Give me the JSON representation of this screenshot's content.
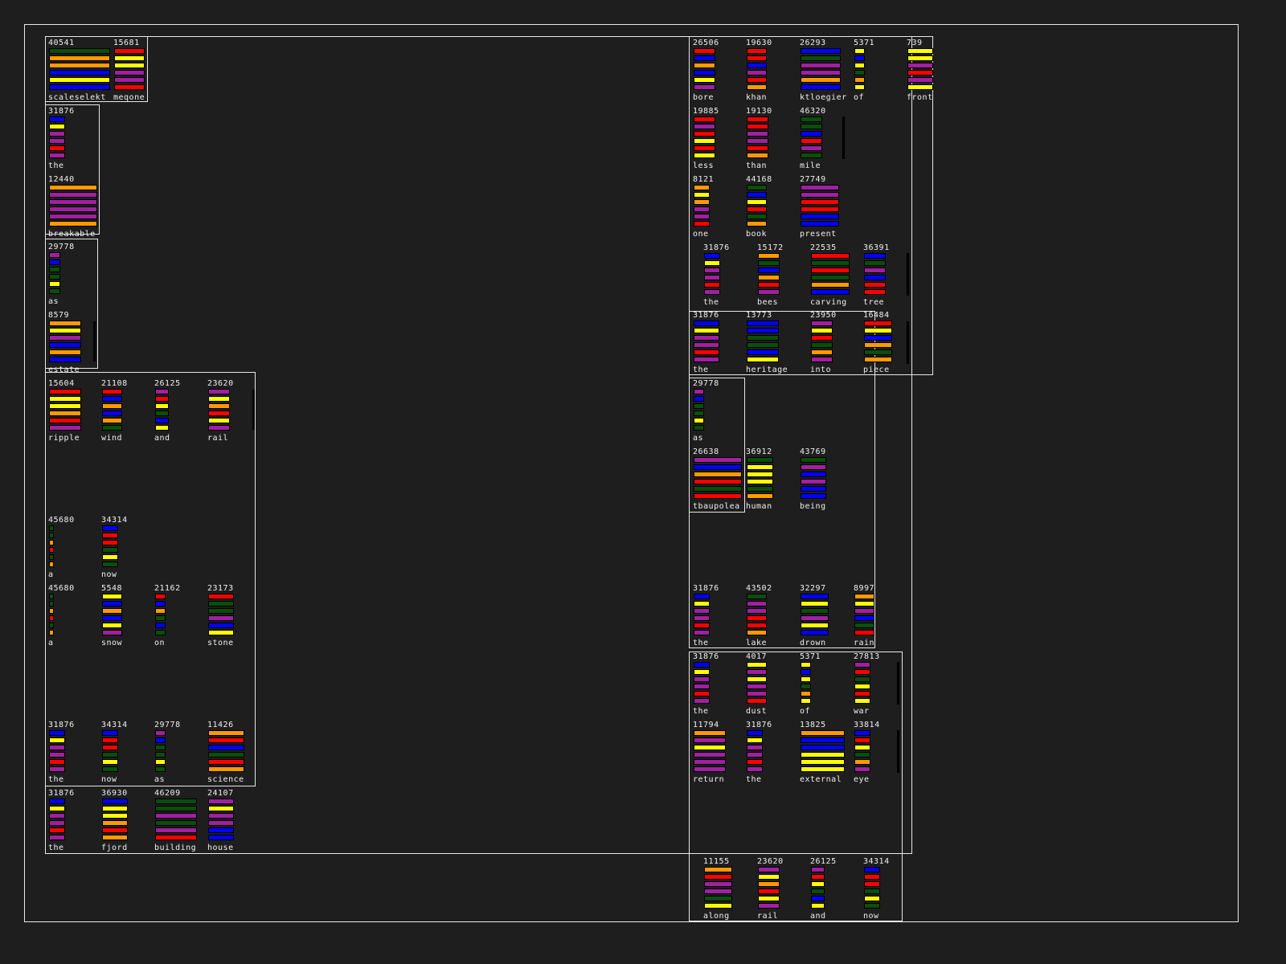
{
  "palette": {
    "G": "#0b4d0b",
    "O": "#ff9900",
    "B": "#0000ff",
    "Y": "#ffff00",
    "R": "#ff0000",
    "P": "#a020a0"
  },
  "glyphs": [
    {
      "num": "40541",
      "word": "scaleselekt",
      "bars": [
        "G",
        "O",
        "O",
        "B",
        "Y",
        "B"
      ]
    },
    {
      "num": "15681",
      "word": "meqone",
      "bars": [
        "R",
        "Y",
        "Y",
        "P",
        "P",
        "R"
      ]
    },
    {
      "num": "31876",
      "word": "the",
      "bars": [
        "B",
        "Y",
        "P",
        "P",
        "R",
        "P"
      ]
    },
    {
      "num": "12440",
      "word": "breakable",
      "bars": [
        "O",
        "P",
        "P",
        "P",
        "P",
        "O"
      ]
    },
    {
      "num": "29778",
      "word": "as",
      "bars": [
        "P",
        "B",
        "G",
        "G",
        "Y",
        "G"
      ]
    },
    {
      "num": "8579",
      "word": "estate",
      "bars": [
        "O",
        "Y",
        "P",
        "B",
        "O",
        "B"
      ]
    },
    {
      "num": "15604",
      "word": "ripple",
      "bars": [
        "R",
        "Y",
        "Y",
        "O",
        "R",
        "P"
      ]
    },
    {
      "num": "21108",
      "word": "wind",
      "bars": [
        "R",
        "B",
        "O",
        "B",
        "O",
        "G"
      ]
    },
    {
      "num": "26125",
      "word": "and",
      "bars": [
        "P",
        "R",
        "Y",
        "G",
        "B",
        "Y"
      ]
    },
    {
      "num": "23620",
      "word": "rail",
      "bars": [
        "P",
        "Y",
        "O",
        "R",
        "Y",
        "P"
      ]
    },
    {
      "num": "45680",
      "word": "a",
      "bars": [
        "G",
        "G",
        "O",
        "R",
        "G",
        "O"
      ]
    },
    {
      "num": "34314",
      "word": "now",
      "bars": [
        "B",
        "R",
        "R",
        "G",
        "Y",
        "G"
      ]
    },
    {
      "num": "45680",
      "word": "a",
      "bars": [
        "G",
        "G",
        "O",
        "R",
        "G",
        "O"
      ]
    },
    {
      "num": "5548",
      "word": "snow",
      "bars": [
        "Y",
        "B",
        "O",
        "B",
        "Y",
        "P"
      ]
    },
    {
      "num": "21162",
      "word": "on",
      "bars": [
        "R",
        "B",
        "O",
        "G",
        "B",
        "G"
      ]
    },
    {
      "num": "23173",
      "word": "stone",
      "bars": [
        "R",
        "G",
        "G",
        "P",
        "B",
        "Y"
      ]
    },
    {
      "num": "31876",
      "word": "the",
      "bars": [
        "B",
        "Y",
        "P",
        "P",
        "R",
        "P"
      ]
    },
    {
      "num": "34314",
      "word": "now",
      "bars": [
        "B",
        "R",
        "R",
        "G",
        "Y",
        "G"
      ]
    },
    {
      "num": "29778",
      "word": "as",
      "bars": [
        "P",
        "B",
        "G",
        "G",
        "Y",
        "G"
      ]
    },
    {
      "num": "11426",
      "word": "science",
      "bars": [
        "O",
        "R",
        "B",
        "G",
        "R",
        "O"
      ]
    },
    {
      "num": "31876",
      "word": "the",
      "bars": [
        "B",
        "Y",
        "P",
        "P",
        "R",
        "P"
      ]
    },
    {
      "num": "36930",
      "word": "fjord",
      "bars": [
        "B",
        "Y",
        "Y",
        "O",
        "R",
        "O"
      ]
    },
    {
      "num": "46209",
      "word": "building",
      "bars": [
        "G",
        "G",
        "P",
        "G",
        "P",
        "R"
      ]
    },
    {
      "num": "24107",
      "word": "house",
      "bars": [
        "P",
        "Y",
        "P",
        "P",
        "B",
        "B"
      ]
    },
    {
      "num": "26506",
      "word": "bore",
      "bars": [
        "R",
        "B",
        "O",
        "B",
        "Y",
        "P"
      ]
    },
    {
      "num": "19630",
      "word": "khan",
      "bars": [
        "R",
        "R",
        "B",
        "P",
        "R",
        "O"
      ]
    },
    {
      "num": "26293",
      "word": "ktloegier",
      "bars": [
        "B",
        "G",
        "P",
        "P",
        "O",
        "B"
      ]
    },
    {
      "num": "5371",
      "word": "of",
      "bars": [
        "Y",
        "B",
        "Y",
        "G",
        "O",
        "Y"
      ]
    },
    {
      "num": "739",
      "word": "front",
      "bars": [
        "Y",
        "Y",
        "P",
        "R",
        "P",
        "Y"
      ]
    },
    {
      "num": "19885",
      "word": "less",
      "bars": [
        "R",
        "P",
        "R",
        "Y",
        "R",
        "Y"
      ]
    },
    {
      "num": "19130",
      "word": "than",
      "bars": [
        "R",
        "R",
        "P",
        "P",
        "R",
        "O"
      ]
    },
    {
      "num": "46320",
      "word": "mile",
      "bars": [
        "G",
        "G",
        "B",
        "R",
        "P",
        "G"
      ]
    },
    {
      "num": "8121",
      "word": "one",
      "bars": [
        "O",
        "Y",
        "O",
        "P",
        "P",
        "R"
      ]
    },
    {
      "num": "44168",
      "word": "book",
      "bars": [
        "G",
        "B",
        "Y",
        "R",
        "G",
        "O"
      ]
    },
    {
      "num": "27749",
      "word": "present",
      "bars": [
        "P",
        "P",
        "R",
        "R",
        "B",
        "B"
      ]
    },
    {
      "num": "31876",
      "word": "the",
      "bars": [
        "B",
        "Y",
        "P",
        "P",
        "R",
        "P"
      ]
    },
    {
      "num": "15172",
      "word": "bees",
      "bars": [
        "O",
        "G",
        "B",
        "O",
        "R",
        "P"
      ]
    },
    {
      "num": "22535",
      "word": "carving",
      "bars": [
        "R",
        "G",
        "R",
        "G",
        "O",
        "B"
      ]
    },
    {
      "num": "36391",
      "word": "tree",
      "bars": [
        "B",
        "G",
        "P",
        "B",
        "R",
        "R"
      ]
    },
    {
      "num": "31876",
      "word": "the",
      "bars": [
        "B",
        "Y",
        "P",
        "P",
        "R",
        "P"
      ]
    },
    {
      "num": "13773",
      "word": "heritage",
      "bars": [
        "B",
        "B",
        "G",
        "G",
        "B",
        "Y"
      ]
    },
    {
      "num": "23950",
      "word": "into",
      "bars": [
        "P",
        "Y",
        "R",
        "G",
        "O",
        "P"
      ]
    },
    {
      "num": "16484",
      "word": "piece",
      "bars": [
        "R",
        "Y",
        "B",
        "O",
        "G",
        "O"
      ]
    },
    {
      "num": "29778",
      "word": "as",
      "bars": [
        "P",
        "B",
        "G",
        "G",
        "Y",
        "G"
      ]
    },
    {
      "num": "26638",
      "word": "tbaupolea",
      "bars": [
        "P",
        "B",
        "O",
        "R",
        "G",
        "R"
      ]
    },
    {
      "num": "36912",
      "word": "human",
      "bars": [
        "G",
        "Y",
        "Y",
        "Y",
        "G",
        "O"
      ]
    },
    {
      "num": "43769",
      "word": "being",
      "bars": [
        "G",
        "P",
        "B",
        "P",
        "B",
        "B"
      ]
    },
    {
      "num": "31876",
      "word": "the",
      "bars": [
        "B",
        "Y",
        "P",
        "P",
        "R",
        "P"
      ]
    },
    {
      "num": "43502",
      "word": "lake",
      "bars": [
        "G",
        "P",
        "P",
        "R",
        "R",
        "O"
      ]
    },
    {
      "num": "32297",
      "word": "drown",
      "bars": [
        "B",
        "Y",
        "G",
        "P",
        "Y",
        "B"
      ]
    },
    {
      "num": "8997",
      "word": "rain",
      "bars": [
        "O",
        "Y",
        "P",
        "B",
        "G",
        "R"
      ]
    },
    {
      "num": "31876",
      "word": "the",
      "bars": [
        "B",
        "Y",
        "P",
        "P",
        "R",
        "P"
      ]
    },
    {
      "num": "4017",
      "word": "dust",
      "bars": [
        "Y",
        "P",
        "Y",
        "P",
        "P",
        "R"
      ]
    },
    {
      "num": "5371",
      "word": "of",
      "bars": [
        "Y",
        "B",
        "Y",
        "G",
        "O",
        "Y"
      ]
    },
    {
      "num": "27813",
      "word": "war",
      "bars": [
        "P",
        "R",
        "G",
        "Y",
        "R",
        "Y"
      ]
    },
    {
      "num": "11794",
      "word": "return",
      "bars": [
        "O",
        "P",
        "Y",
        "P",
        "P",
        "P"
      ]
    },
    {
      "num": "31876",
      "word": "the",
      "bars": [
        "B",
        "Y",
        "P",
        "P",
        "R",
        "P"
      ]
    },
    {
      "num": "13825",
      "word": "external",
      "bars": [
        "O",
        "B",
        "B",
        "Y",
        "Y",
        "Y"
      ]
    },
    {
      "num": "33814",
      "word": "eye",
      "bars": [
        "B",
        "R",
        "Y",
        "G",
        "O",
        "P"
      ]
    },
    {
      "num": "11155",
      "word": "along",
      "bars": [
        "O",
        "R",
        "P",
        "P",
        "G",
        "Y"
      ]
    },
    {
      "num": "23620",
      "word": "rail",
      "bars": [
        "P",
        "Y",
        "O",
        "R",
        "Y",
        "P"
      ]
    },
    {
      "num": "26125",
      "word": "and",
      "bars": [
        "P",
        "R",
        "Y",
        "G",
        "B",
        "Y"
      ]
    },
    {
      "num": "34314",
      "word": "now",
      "bars": [
        "B",
        "R",
        "R",
        "G",
        "Y",
        "G"
      ]
    }
  ]
}
